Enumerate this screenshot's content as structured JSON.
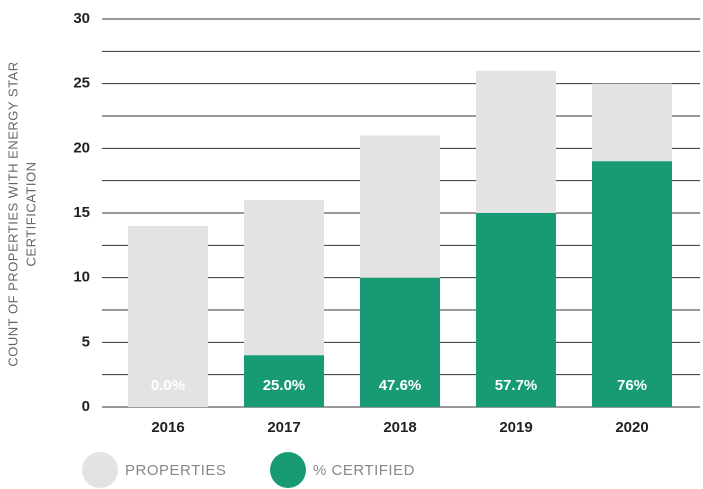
{
  "chart_data": {
    "type": "overlap_bar",
    "ylabel": [
      "COUNT OF PROPERTIES WITH ENERGY STAR",
      "CERTIFICATION"
    ],
    "categories": [
      "2016",
      "2017",
      "2018",
      "2019",
      "2020"
    ],
    "series": [
      {
        "name": "PROPERTIES",
        "color": "#e3e3e4",
        "values": [
          14,
          16,
          21,
          26,
          25
        ]
      },
      {
        "name": "% CERTIFIED",
        "color": "#189b74",
        "values": [
          0,
          25,
          47.6,
          57.7,
          76
        ],
        "value_labels": [
          "0.0%",
          "25.0%",
          "47.6%",
          "57.7%",
          "76%"
        ]
      }
    ],
    "ylim": [
      0,
      30
    ],
    "yticks": [
      0,
      5,
      10,
      15,
      20,
      25,
      30
    ],
    "minor_yticks": [
      2.5,
      7.5,
      12.5,
      17.5,
      22.5,
      27.5
    ],
    "grid": true
  }
}
